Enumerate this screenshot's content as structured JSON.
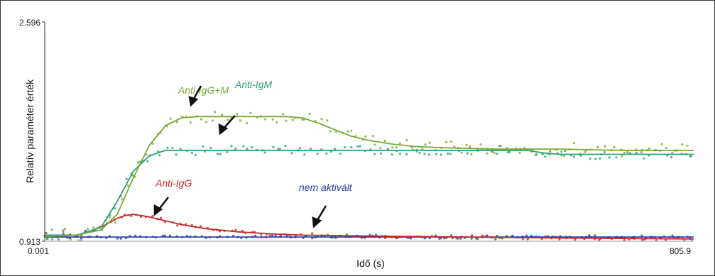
{
  "chart_data": {
    "type": "line",
    "title": "",
    "xlabel": "Idő (s)",
    "ylabel": "Relatív paraméter érték",
    "xlim": [
      0.001,
      805.9
    ],
    "ylim": [
      0.913,
      2.596
    ],
    "x_tick_labels": [
      "0.001",
      "805.9"
    ],
    "y_tick_labels": [
      "0.913",
      "2.596"
    ],
    "grid": false,
    "legend": "none",
    "series": [
      {
        "name": "Anti-IgG+M",
        "color": "#7aaa35",
        "x": [
          0.001,
          40,
          70,
          90,
          110,
          130,
          150,
          170,
          190,
          210,
          250,
          300,
          320,
          340,
          360,
          380,
          400,
          430,
          460,
          500,
          560,
          640,
          720,
          805.9
        ],
        "y": [
          0.95,
          0.96,
          1.0,
          1.12,
          1.4,
          1.65,
          1.8,
          1.86,
          1.87,
          1.87,
          1.87,
          1.87,
          1.86,
          1.82,
          1.77,
          1.72,
          1.69,
          1.66,
          1.64,
          1.63,
          1.62,
          1.62,
          1.61,
          1.61
        ]
      },
      {
        "name": "Anti-IgM",
        "color": "#2aa37a",
        "x": [
          0.001,
          40,
          70,
          90,
          110,
          130,
          150,
          170,
          200,
          300,
          400,
          500,
          560,
          600,
          620,
          640,
          700,
          805.9
        ],
        "y": [
          0.96,
          0.96,
          1.02,
          1.22,
          1.45,
          1.57,
          1.61,
          1.61,
          1.61,
          1.61,
          1.61,
          1.61,
          1.61,
          1.61,
          1.59,
          1.58,
          1.58,
          1.58
        ]
      },
      {
        "name": "Anti-IgG",
        "color": "#c8282d",
        "x": [
          0.001,
          40,
          70,
          90,
          100,
          110,
          130,
          150,
          170,
          200,
          240,
          280,
          320,
          380,
          440,
          520,
          600,
          700,
          805.9
        ],
        "y": [
          0.96,
          0.96,
          1.02,
          1.09,
          1.11,
          1.12,
          1.1,
          1.07,
          1.04,
          1.01,
          0.985,
          0.97,
          0.96,
          0.955,
          0.95,
          0.945,
          0.94,
          0.935,
          0.93
        ]
      },
      {
        "name": "nem aktivált",
        "color": "#2b3aa8",
        "x": [
          0.001,
          805.9
        ],
        "y": [
          0.945,
          0.945
        ]
      }
    ],
    "annotations": [
      {
        "text": "Anti-IgG+M",
        "color": "#7aaa35"
      },
      {
        "text": "Anti-IgM",
        "color": "#2aa37a"
      },
      {
        "text": "Anti-IgG",
        "color": "#c8282d"
      },
      {
        "text": "nem aktivált",
        "color": "#2b3aa8"
      }
    ]
  }
}
